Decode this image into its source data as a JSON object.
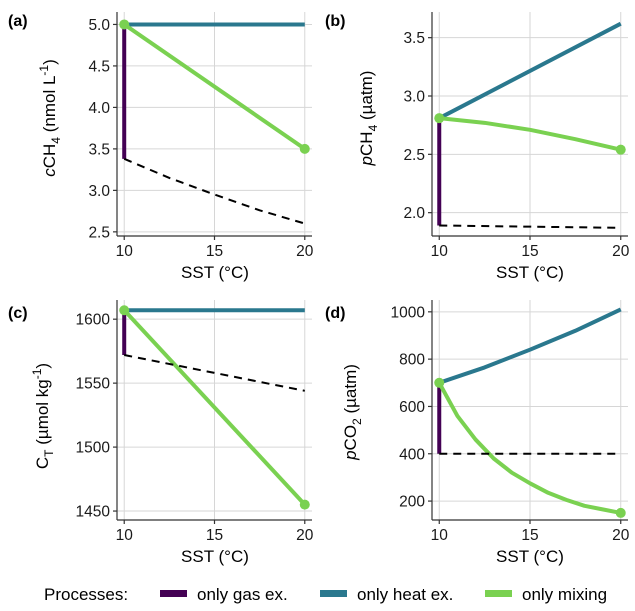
{
  "legend": {
    "title": "Processes:",
    "items": [
      {
        "label": "only gas ex.",
        "color": "#440154"
      },
      {
        "label": "only heat ex.",
        "color": "#2a788e"
      },
      {
        "label": "only mixing",
        "color": "#7ad151"
      }
    ]
  },
  "chart_data": [
    {
      "panel": "(a)",
      "type": "line",
      "xlabel": "SST (°C)",
      "ylabel": {
        "prefix": "c",
        "main": "CH",
        "sub": "4",
        "unit": " (nmol L",
        "sup": "-1",
        "close": ")"
      },
      "xlim": [
        9.6,
        20.4
      ],
      "ylim": [
        2.45,
        5.15
      ],
      "xticks": [
        10,
        15,
        20
      ],
      "yticks": [
        2.5,
        3.0,
        3.5,
        4.0,
        4.5,
        5.0
      ],
      "ytick_labels": [
        "2.5",
        "3.0",
        "3.5",
        "4.0",
        "4.5",
        "5.0"
      ],
      "grid": true,
      "series": [
        {
          "name": "only gas ex.",
          "style": "solid",
          "x": [
            10,
            10
          ],
          "y": [
            5.0,
            3.38
          ]
        },
        {
          "name": "only heat ex.",
          "style": "solid",
          "x": [
            10,
            20
          ],
          "y": [
            5.0,
            5.0
          ]
        },
        {
          "name": "only mixing",
          "style": "solid",
          "x": [
            10,
            20
          ],
          "y": [
            5.0,
            3.5
          ],
          "markers": true
        },
        {
          "style": "dashed",
          "x": [
            10,
            12.5,
            15,
            17.5,
            20
          ],
          "y": [
            3.38,
            3.15,
            2.95,
            2.76,
            2.6
          ]
        }
      ]
    },
    {
      "panel": "(b)",
      "type": "line",
      "xlabel": "SST (°C)",
      "ylabel": {
        "prefix": "p",
        "main": "CH",
        "sub": "4",
        "unit": " (µatm)",
        "sup": "",
        "close": ""
      },
      "xlim": [
        9.6,
        20.4
      ],
      "ylim": [
        1.8,
        3.72
      ],
      "xticks": [
        10,
        15,
        20
      ],
      "yticks": [
        2.0,
        2.5,
        3.0,
        3.5
      ],
      "ytick_labels": [
        "2.0",
        "2.5",
        "3.0",
        "3.5"
      ],
      "grid": true,
      "series": [
        {
          "name": "only gas ex.",
          "style": "solid",
          "x": [
            10,
            10
          ],
          "y": [
            2.81,
            1.89
          ]
        },
        {
          "name": "only heat ex.",
          "style": "solid",
          "x": [
            10,
            20
          ],
          "y": [
            2.81,
            3.62
          ]
        },
        {
          "name": "only mixing",
          "style": "solid",
          "x": [
            10,
            12.5,
            15,
            17.5,
            20
          ],
          "y": [
            2.81,
            2.77,
            2.71,
            2.63,
            2.54
          ],
          "markers": true
        },
        {
          "style": "dashed",
          "x": [
            10,
            20
          ],
          "y": [
            1.89,
            1.87
          ]
        }
      ]
    },
    {
      "panel": "(c)",
      "type": "line",
      "xlabel": "SST (°C)",
      "ylabel": {
        "prefix": "",
        "main": "C",
        "sub": "T",
        "unit": " (µmol kg",
        "sup": "-1",
        "close": ")"
      },
      "xlim": [
        9.6,
        20.4
      ],
      "ylim": [
        1443,
        1615
      ],
      "xticks": [
        10,
        15,
        20
      ],
      "yticks": [
        1450,
        1500,
        1550,
        1600
      ],
      "ytick_labels": [
        "1450",
        "1500",
        "1550",
        "1600"
      ],
      "grid": true,
      "series": [
        {
          "name": "only gas ex.",
          "style": "solid",
          "x": [
            10,
            10
          ],
          "y": [
            1607,
            1572
          ]
        },
        {
          "name": "only heat ex.",
          "style": "solid",
          "x": [
            10,
            20
          ],
          "y": [
            1607,
            1607
          ]
        },
        {
          "name": "only mixing",
          "style": "solid",
          "x": [
            10,
            20
          ],
          "y": [
            1607,
            1455
          ],
          "markers": true
        },
        {
          "style": "dashed",
          "x": [
            10,
            20
          ],
          "y": [
            1572,
            1544
          ]
        }
      ]
    },
    {
      "panel": "(d)",
      "type": "line",
      "xlabel": "SST (°C)",
      "ylabel": {
        "prefix": "p",
        "main": "CO",
        "sub": "2",
        "unit": " (µatm)",
        "sup": "",
        "close": ""
      },
      "xlim": [
        9.6,
        20.4
      ],
      "ylim": [
        120,
        1050
      ],
      "xticks": [
        10,
        15,
        20
      ],
      "yticks": [
        200,
        400,
        600,
        800,
        1000
      ],
      "ytick_labels": [
        "200",
        "400",
        "600",
        "800",
        "1000"
      ],
      "grid": true,
      "series": [
        {
          "name": "only gas ex.",
          "style": "solid",
          "x": [
            10,
            10
          ],
          "y": [
            700,
            400
          ]
        },
        {
          "name": "only heat ex.",
          "style": "solid",
          "x": [
            10,
            12.5,
            15,
            17.5,
            20
          ],
          "y": [
            700,
            765,
            840,
            920,
            1010
          ]
        },
        {
          "name": "only mixing",
          "style": "solid",
          "x": [
            10,
            11,
            12,
            13,
            14,
            15,
            16,
            17,
            18,
            19,
            20
          ],
          "y": [
            700,
            560,
            460,
            380,
            320,
            275,
            235,
            205,
            180,
            165,
            150
          ],
          "markers": true
        },
        {
          "style": "dashed",
          "x": [
            10,
            20
          ],
          "y": [
            400,
            400
          ]
        }
      ]
    }
  ]
}
